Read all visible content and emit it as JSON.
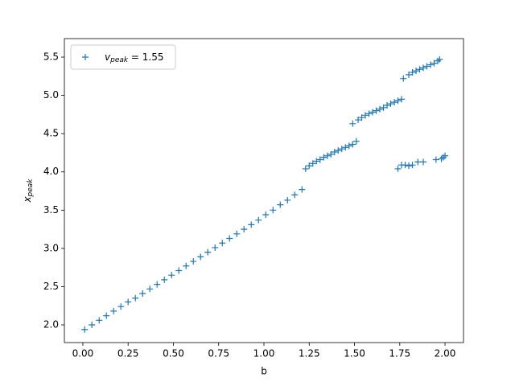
{
  "chart_data": {
    "type": "scatter",
    "xlabel": "b",
    "ylabel": "xpeak",
    "xlim": [
      -0.102,
      2.102
    ],
    "ylim": [
      1.769,
      5.742
    ],
    "xticks": [
      {
        "value": 0,
        "label": "0.00"
      },
      0.25,
      {
        "value": 0.5,
        "label": "0.50"
      },
      0.75,
      {
        "value": 1,
        "label": "1.00"
      },
      1.25,
      {
        "value": 1.5,
        "label": "1.50"
      },
      1.75,
      {
        "value": 2,
        "label": "2.00"
      }
    ],
    "yticks": [
      {
        "value": 2,
        "label": "2.0"
      },
      2.5,
      {
        "value": 3,
        "label": "3.0"
      },
      3.5,
      {
        "value": 4,
        "label": "4.0"
      },
      4.5,
      {
        "value": 5,
        "label": "5.0"
      },
      5.5
    ],
    "legend": "upper left",
    "marker": "+",
    "series": [
      {
        "name": "vpeak = 1.55",
        "color": "#1f77b4",
        "x": [
          0.01,
          0.05,
          0.09,
          0.13,
          0.17,
          0.21,
          0.25,
          0.29,
          0.33,
          0.37,
          0.41,
          0.45,
          0.49,
          0.53,
          0.57,
          0.61,
          0.65,
          0.69,
          0.73,
          0.77,
          0.81,
          0.85,
          0.89,
          0.93,
          0.97,
          1.01,
          1.05,
          1.09,
          1.13,
          1.17,
          1.21,
          1.23,
          1.25,
          1.27,
          1.29,
          1.31,
          1.33,
          1.35,
          1.37,
          1.39,
          1.41,
          1.43,
          1.45,
          1.47,
          1.49,
          1.51,
          1.49,
          1.52,
          1.54,
          1.56,
          1.58,
          1.6,
          1.62,
          1.64,
          1.66,
          1.68,
          1.7,
          1.72,
          1.74,
          1.76,
          1.77,
          1.8,
          1.82,
          1.84,
          1.86,
          1.88,
          1.9,
          1.92,
          1.94,
          1.96,
          1.97,
          1.74,
          1.76,
          1.78,
          1.8,
          1.82,
          1.85,
          1.88,
          1.95,
          1.98,
          1.99,
          2.0
        ],
        "values": [
          1.94,
          2.0,
          2.06,
          2.12,
          2.18,
          2.24,
          2.3,
          2.35,
          2.41,
          2.47,
          2.53,
          2.59,
          2.65,
          2.71,
          2.77,
          2.83,
          2.89,
          2.95,
          3.01,
          3.07,
          3.13,
          3.19,
          3.25,
          3.31,
          3.37,
          3.44,
          3.5,
          3.57,
          3.63,
          3.7,
          3.77,
          4.04,
          4.08,
          4.11,
          4.14,
          4.16,
          4.19,
          4.21,
          4.23,
          4.26,
          4.28,
          4.3,
          4.32,
          4.34,
          4.36,
          4.4,
          4.63,
          4.68,
          4.71,
          4.74,
          4.76,
          4.78,
          4.8,
          4.82,
          4.84,
          4.87,
          4.89,
          4.91,
          4.93,
          4.95,
          5.22,
          5.27,
          5.3,
          5.32,
          5.34,
          5.36,
          5.38,
          5.4,
          5.42,
          5.45,
          5.47,
          4.04,
          4.09,
          4.09,
          4.08,
          4.09,
          4.13,
          4.13,
          4.16,
          4.17,
          4.19,
          4.21
        ]
      }
    ]
  }
}
